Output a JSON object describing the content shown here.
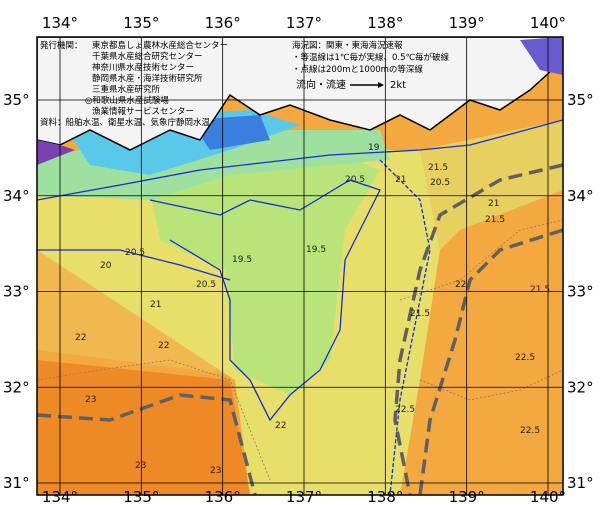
{
  "map": {
    "lon_ticks": [
      {
        "value": 134,
        "label": "134°"
      },
      {
        "value": 135,
        "label": "135°"
      },
      {
        "value": 136,
        "label": "136°"
      },
      {
        "value": 137,
        "label": "137°"
      },
      {
        "value": 138,
        "label": "138°"
      },
      {
        "value": 139,
        "label": "139°"
      },
      {
        "value": 140,
        "label": "140°"
      }
    ],
    "lat_ticks": [
      {
        "value": 35,
        "label": "35°"
      },
      {
        "value": 34,
        "label": "34°"
      },
      {
        "value": 33,
        "label": "33°"
      },
      {
        "value": 32,
        "label": "32°"
      },
      {
        "value": 31,
        "label": "31°"
      }
    ],
    "contour_labels": [
      "19",
      "19.5",
      "19.5",
      "20",
      "20.5",
      "20.5",
      "20.5",
      "20.5",
      "21",
      "21",
      "21",
      "21.5",
      "21.5",
      "21.5",
      "21.5",
      "22",
      "22",
      "22",
      "22",
      "22.5",
      "22.5",
      "22.5",
      "23",
      "23",
      "23"
    ]
  },
  "publisher": {
    "heading": "発行機関：",
    "organizations": [
      "東京都島しょ農林水産総合センター",
      "千葉県水産総合研究センター",
      "神奈川県水産技術センター",
      "静岡県水産・海洋技術研究所",
      "三重県水産研究所",
      "◎和歌山県水産試験場",
      "漁業情報サービスセンター"
    ],
    "sources": "資料：船舶水温、衛星水温、気象庁静岡水温"
  },
  "legend": {
    "title": "海況図：関東・東海海況速報",
    "notes": [
      "・等温線は1℃毎が実線、0.5℃毎が破線",
      "・点線は200mと1000mの等深線"
    ],
    "current": "流向・流速",
    "speed": "2kt"
  }
}
